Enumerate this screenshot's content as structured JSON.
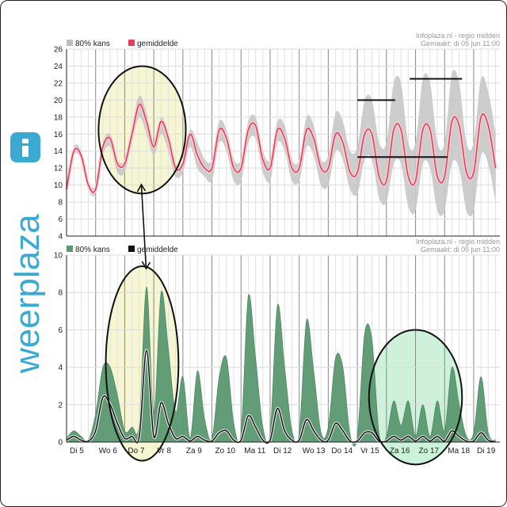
{
  "brand": {
    "text": "weerplaza",
    "accent": "#3ba9d2"
  },
  "days": [
    "Di 5",
    "Wo 6",
    "Do 7",
    "Vr 8",
    "Za 9",
    "Zo 10",
    "Ma 11",
    "Di 12",
    "Wo 13",
    "Do 14",
    "Vr 15",
    "Za 16",
    "Zo 17",
    "Ma 18",
    "Di 19"
  ],
  "chart_data": [
    {
      "type": "area",
      "source": "Infoplaza.nl - regio midden",
      "made": "Gemaakt: di 05 jun 11:00",
      "legend": [
        {
          "name": "80% kans",
          "color": "#bdbdbd"
        },
        {
          "name": "gemiddelde",
          "color": "#e0405a"
        }
      ],
      "ylim": [
        4,
        26
      ],
      "yticks": [
        4,
        6,
        8,
        10,
        12,
        14,
        16,
        18,
        20,
        22,
        24,
        26
      ],
      "x": [
        0,
        0.25,
        0.5,
        0.75,
        1,
        1.25,
        1.5,
        1.75,
        2,
        2.25,
        2.5,
        2.75,
        3,
        3.25,
        3.5,
        3.75,
        4,
        4.25,
        4.5,
        4.75,
        5,
        5.25,
        5.5,
        5.75,
        6,
        6.25,
        6.5,
        6.75,
        7,
        7.25,
        7.5,
        7.75,
        8,
        8.25,
        8.5,
        8.75,
        9,
        9.25,
        9.5,
        9.75,
        10,
        10.25,
        10.5,
        10.75,
        11,
        11.25,
        11.5,
        11.75,
        12,
        12.25,
        12.5,
        12.75,
        13,
        13.25,
        13.5,
        13.75,
        14,
        14.25,
        14.5,
        14.75
      ],
      "series": [
        {
          "name": "gemiddelde",
          "color": "#e0405a",
          "values": [
            9.5,
            14,
            13.5,
            10,
            9.5,
            14.5,
            15.5,
            12.5,
            12.5,
            16,
            19.5,
            17.5,
            14.5,
            17.5,
            15.5,
            12,
            12.5,
            16,
            13.5,
            12,
            12,
            16.5,
            15.5,
            12,
            12,
            16.5,
            17,
            13,
            12,
            16.5,
            15.5,
            12,
            12,
            16.5,
            15.5,
            12,
            12,
            16,
            15,
            11.5,
            11.5,
            16,
            16,
            11,
            10.5,
            16.5,
            16.5,
            11,
            10.5,
            16.5,
            16.5,
            11,
            11,
            17.5,
            17,
            11.5,
            11.5,
            18,
            17,
            12
          ]
        },
        {
          "name": "80% kans upper",
          "color": "#c8c8c8",
          "values": [
            10,
            14.5,
            14,
            10.5,
            10,
            15,
            16,
            13,
            13,
            17,
            20.5,
            18.5,
            15,
            18,
            16,
            12.5,
            13,
            16.5,
            15,
            13,
            13,
            17.5,
            16.5,
            13,
            13,
            17.5,
            18,
            14,
            13,
            17.5,
            17,
            13,
            13,
            18,
            17,
            13,
            13.5,
            18.5,
            17.5,
            14,
            14.5,
            20,
            20,
            15,
            15,
            22,
            22,
            15,
            15,
            22.5,
            22,
            15,
            15,
            23,
            22,
            15,
            15,
            22.5,
            21,
            16
          ]
        },
        {
          "name": "80% kans lower",
          "color": "#c8c8c8",
          "values": [
            9,
            13.5,
            13,
            9.5,
            9,
            13.5,
            14.5,
            11.5,
            11.5,
            15,
            18,
            16,
            13.5,
            16,
            14,
            11,
            11.5,
            14.5,
            12,
            11,
            10.5,
            15,
            14,
            10.5,
            10.5,
            15,
            15.5,
            11.5,
            10.5,
            15,
            14,
            10.5,
            10.5,
            14.5,
            13.5,
            10,
            10,
            14,
            13,
            9.5,
            9,
            13,
            13,
            8.5,
            8,
            12.5,
            12.5,
            7.5,
            7,
            12.5,
            12,
            7,
            7,
            12.5,
            12,
            7,
            7,
            13.5,
            12.5,
            8
          ]
        }
      ],
      "annotations": [
        {
          "type": "hline",
          "x0": 10,
          "x1": 11.3,
          "y": 20
        },
        {
          "type": "hline",
          "x0": 11.8,
          "x1": 13.6,
          "y": 22.5
        },
        {
          "type": "hline",
          "x0": 10,
          "x1": 13.1,
          "y": 13.3
        }
      ]
    },
    {
      "type": "area",
      "source": "Infoplaza.nl - regio midden",
      "made": "Gemaakt: di 05 jun 11:00",
      "legend": [
        {
          "name": "80% kans",
          "color": "#5a9870"
        },
        {
          "name": "gemiddelde",
          "color": "#111111"
        }
      ],
      "ylim": [
        0,
        10
      ],
      "yticks": [
        0,
        2,
        4,
        6,
        8,
        10
      ],
      "x": [
        0,
        0.25,
        0.5,
        0.75,
        1,
        1.25,
        1.5,
        1.75,
        2,
        2.25,
        2.5,
        2.75,
        3,
        3.25,
        3.5,
        3.75,
        4,
        4.25,
        4.5,
        4.75,
        5,
        5.25,
        5.5,
        5.75,
        6,
        6.25,
        6.5,
        6.75,
        7,
        7.25,
        7.5,
        7.75,
        8,
        8.25,
        8.5,
        8.75,
        9,
        9.25,
        9.5,
        9.75,
        10,
        10.25,
        10.5,
        10.75,
        11,
        11.25,
        11.5,
        11.75,
        12,
        12.25,
        12.5,
        12.75,
        13,
        13.25,
        13.5,
        13.75,
        14,
        14.25,
        14.5,
        14.75
      ],
      "series": [
        {
          "name": "80% kans",
          "color": "#5a9870",
          "values": [
            0.2,
            0.6,
            0.3,
            0.1,
            1.5,
            4.0,
            4.0,
            2.5,
            0.6,
            0.8,
            1.0,
            8.3,
            1.5,
            8.0,
            5.0,
            1.6,
            3.5,
            0.2,
            3.8,
            1.2,
            0.2,
            3.5,
            4.5,
            1.0,
            0.5,
            7.8,
            4.5,
            0.8,
            0.5,
            7.3,
            4.0,
            0.6,
            0.5,
            6.5,
            3.8,
            0.5,
            0.8,
            4.5,
            4.0,
            0.4,
            0.3,
            5.8,
            5.5,
            0.4,
            0.3,
            2.2,
            0.9,
            2.2,
            0.3,
            2.0,
            0.3,
            2.2,
            0.6,
            4.0,
            2.0,
            0.3,
            0.5,
            3.5,
            0.5,
            0.1
          ]
        },
        {
          "name": "gemiddelde",
          "color": "#111111",
          "values": [
            0.1,
            0.3,
            0.1,
            0.05,
            0.6,
            2.4,
            2.0,
            1.0,
            0.2,
            0.3,
            0.3,
            4.9,
            0.3,
            2.1,
            1.0,
            0.2,
            0.3,
            0.05,
            0.3,
            0.1,
            0.05,
            0.5,
            0.6,
            0.1,
            0.1,
            1.4,
            0.8,
            0.1,
            0.1,
            1.8,
            0.6,
            0.1,
            0.1,
            1.2,
            0.6,
            0.1,
            0.1,
            1.0,
            0.6,
            0.05,
            0.05,
            0.5,
            0.5,
            0.05,
            0.05,
            0.3,
            0.1,
            0.3,
            0.05,
            0.3,
            0.05,
            0.3,
            0.05,
            0.6,
            0.3,
            0.05,
            0.05,
            0.5,
            0.1,
            0.02
          ]
        }
      ]
    }
  ],
  "highlights": [
    {
      "chart": 0,
      "cx": 2.6,
      "cy": 16.5,
      "rx": 1.5,
      "ry": 7.5,
      "fill": "#f6f6d2"
    },
    {
      "chart": 1,
      "cx": 2.6,
      "cy": 4.2,
      "rx": 1.25,
      "ry": 5.2,
      "fill": "#f6f6d2"
    },
    {
      "chart": 1,
      "cx": 12.0,
      "cy": 2.4,
      "rx": 1.6,
      "ry": 3.6,
      "fill": "#cdf2da"
    }
  ]
}
